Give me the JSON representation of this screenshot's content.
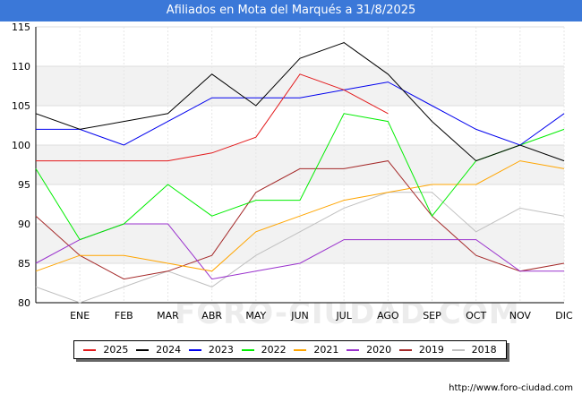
{
  "title": "Afiliados en Mota del Marqués a 31/8/2025",
  "source": "http://www.foro-ciudad.com",
  "watermark": "FORO-CIUDAD.COM",
  "chart_data": {
    "type": "line",
    "title": "Afiliados en Mota del Marqués a 31/8/2025",
    "x_tick_labels": [
      "ENE",
      "FEB",
      "MAR",
      "ABR",
      "MAY",
      "JUN",
      "JUL",
      "AGO",
      "SEP",
      "OCT",
      "NOV",
      "DIC"
    ],
    "x_start_label": "",
    "ylim": [
      80,
      115
    ],
    "y_ticks": [
      80,
      85,
      90,
      95,
      100,
      105,
      110,
      115
    ],
    "grid": "horizontal bands",
    "legend_position": "bottom",
    "series": [
      {
        "name": "2025",
        "color": "#e31a1c",
        "values": [
          98,
          98,
          98,
          98,
          99,
          101,
          109,
          107,
          104
        ]
      },
      {
        "name": "2024",
        "color": "#000000",
        "values": [
          104,
          102,
          103,
          104,
          109,
          105,
          111,
          113,
          109,
          103,
          98,
          100,
          98
        ]
      },
      {
        "name": "2023",
        "color": "#0000ee",
        "values": [
          102,
          102,
          100,
          103,
          106,
          106,
          106,
          107,
          108,
          105,
          102,
          100,
          104
        ]
      },
      {
        "name": "2022",
        "color": "#00ee00",
        "values": [
          97,
          88,
          90,
          95,
          91,
          93,
          93,
          104,
          103,
          91,
          98,
          100,
          102
        ]
      },
      {
        "name": "2021",
        "color": "#ffa500",
        "values": [
          84,
          86,
          86,
          85,
          84,
          89,
          91,
          93,
          94,
          95,
          95,
          98,
          97
        ]
      },
      {
        "name": "2020",
        "color": "#9a32cd",
        "values": [
          85,
          88,
          90,
          90,
          83,
          84,
          85,
          88,
          88,
          88,
          88,
          84,
          84
        ]
      },
      {
        "name": "2019",
        "color": "#a52a2a",
        "values": [
          91,
          86,
          83,
          84,
          86,
          94,
          97,
          97,
          98,
          91,
          86,
          84,
          85
        ]
      },
      {
        "name": "2018",
        "color": "#c0c0c0",
        "values": [
          82,
          80,
          82,
          84,
          82,
          86,
          89,
          92,
          94,
          94,
          89,
          92,
          91
        ]
      }
    ]
  }
}
